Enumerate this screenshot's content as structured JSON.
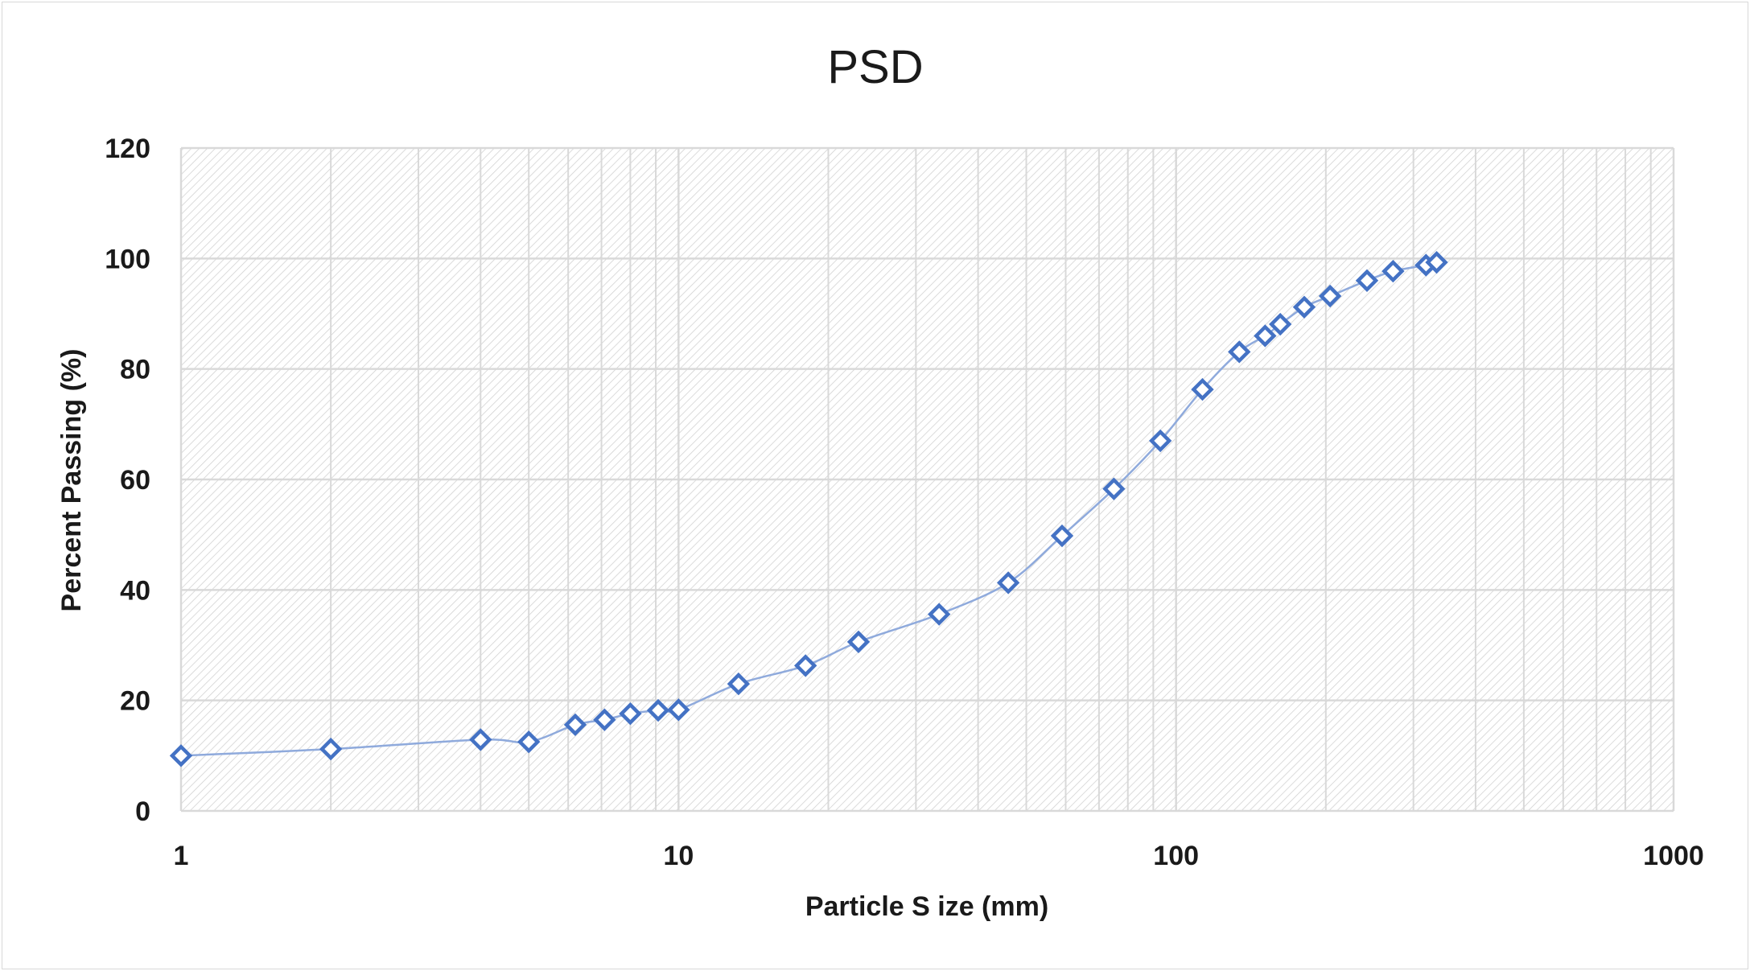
{
  "chart_data": {
    "type": "scatter",
    "title": "PSD",
    "xlabel": "Particle S ize (mm)",
    "ylabel": "Percent Passing (%)",
    "xscale": "log",
    "xlim": [
      1,
      1000
    ],
    "ylim": [
      0,
      120
    ],
    "x_ticks": [
      "1",
      "10",
      "100",
      "1000"
    ],
    "y_ticks": [
      "0",
      "20",
      "40",
      "60",
      "80",
      "100",
      "120"
    ],
    "grid": true,
    "legend": "none",
    "marker": "diamond-open",
    "line": "smooth",
    "colors": {
      "marker": "#4472C4",
      "line": "#8FAADC",
      "grid": "#d9d9d9",
      "plot_hatch": "#d0d0d0"
    },
    "series": [
      {
        "x": [
          1,
          2,
          4,
          5,
          6.2,
          7.1,
          8,
          9.1,
          10,
          13.2,
          18,
          23,
          33.4,
          46,
          59,
          75,
          93,
          113,
          134,
          151,
          162,
          181,
          204,
          242,
          273,
          318,
          334
        ],
        "y": [
          10,
          11.2,
          12.9,
          12.5,
          15.6,
          16.5,
          17.6,
          18.2,
          18.3,
          23,
          26.3,
          30.6,
          35.6,
          41.3,
          49.8,
          58.3,
          67,
          76.3,
          83.1,
          86,
          88.1,
          91.2,
          93.2,
          96,
          97.7,
          98.8,
          99.3
        ]
      }
    ]
  }
}
